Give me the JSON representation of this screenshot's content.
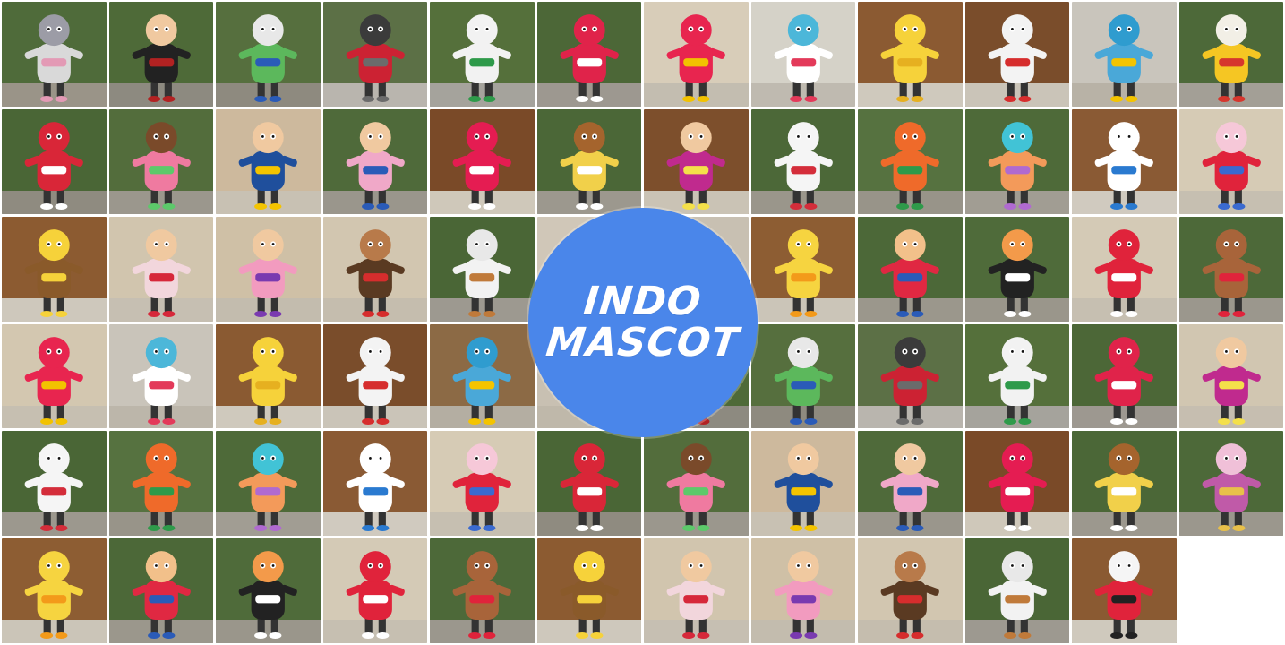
{
  "badge": {
    "line1": "INDO",
    "line2": "MASCOT",
    "color": "#4a86ea"
  },
  "tiles": [
    {
      "bg": "#4f6b3a",
      "ground": "#9a9488",
      "body": "#d9d9d9",
      "head": "#9c9ca6",
      "accent": "#e39ab5",
      "kind": "elephant-mascot"
    },
    {
      "bg": "#4e6a38",
      "ground": "#8d8a80",
      "body": "#222222",
      "head": "#f0c9a0",
      "accent": "#b22222",
      "kind": "gentleman-mascot"
    },
    {
      "bg": "#566f3e",
      "ground": "#8e8a7f",
      "body": "#5cb85c",
      "head": "#e8e8e8",
      "accent": "#2a5bb8",
      "kind": "creature-mascot"
    },
    {
      "bg": "#5c7046",
      "ground": "#b9b5ae",
      "body": "#cc2233",
      "head": "#3b3b3b",
      "accent": "#6b6b6b",
      "kind": "bird-mascot"
    },
    {
      "bg": "#55703b",
      "ground": "#a5a39c",
      "body": "#f2f2f2",
      "head": "#f2f2f2",
      "accent": "#2e9a4a",
      "kind": "bottle-mascot"
    },
    {
      "bg": "#4c6737",
      "ground": "#9d9890",
      "body": "#e0234a",
      "head": "#e0234a",
      "accent": "#ffffff",
      "kind": "monster-mascot"
    },
    {
      "bg": "#d8cdb9",
      "ground": "#c3bdb0",
      "body": "#e8254f",
      "head": "#e8254f",
      "accent": "#f2c200",
      "kind": "apple-mascot"
    },
    {
      "bg": "#d5d2c8",
      "ground": "#bfbab0",
      "body": "#ffffff",
      "head": "#4cb7d9",
      "accent": "#e33a5a",
      "kind": "fish-mascot"
    },
    {
      "bg": "#8b5a32",
      "ground": "#cfc9bd",
      "body": "#f6d23a",
      "head": "#f6d23a",
      "accent": "#e6b020",
      "kind": "hand-mascot"
    },
    {
      "bg": "#7a4d2b",
      "ground": "#cac4b8",
      "body": "#f3f3f3",
      "head": "#f3f3f3",
      "accent": "#d62d2d",
      "kind": "ninja-mascot"
    },
    {
      "bg": "#c9c5bc",
      "ground": "#b8b2a6",
      "body": "#4aa8d8",
      "head": "#2f9ccf",
      "accent": "#f4c400",
      "kind": "parrot-mascot"
    },
    {
      "bg": "#4d6939",
      "ground": "#a39f96",
      "body": "#f5c623",
      "head": "#f2efe6",
      "accent": "#d6362d",
      "kind": "chicken-mascot"
    },
    {
      "bg": "#4a6636",
      "ground": "#8f8b80",
      "body": "#d92638",
      "head": "#d92638",
      "accent": "#ffffff",
      "kind": "chef-mascot"
    },
    {
      "bg": "#536d3c",
      "ground": "#9b978d",
      "body": "#ef7aa0",
      "head": "#7a4a2a",
      "accent": "#5cc96a",
      "kind": "family-mascot"
    },
    {
      "bg": "#cdb99d",
      "ground": "#c8c1b3",
      "body": "#1f4f9c",
      "head": "#f0c9a0",
      "accent": "#f4c400",
      "kind": "prince-mascot"
    },
    {
      "bg": "#4f6a3a",
      "ground": "#9a968c",
      "body": "#f0a8c8",
      "head": "#f0c9a0",
      "accent": "#2a5bb8",
      "kind": "couple-mascot"
    },
    {
      "bg": "#7a4a28",
      "ground": "#cfc8ba",
      "body": "#e51c52",
      "head": "#e51c52",
      "accent": "#ffffff",
      "kind": "bag-mascot"
    },
    {
      "bg": "#4b6737",
      "ground": "#9c988e",
      "body": "#f1d04a",
      "head": "#a5642d",
      "accent": "#ffffff",
      "kind": "lion-mascot"
    },
    {
      "bg": "#7d4f2c",
      "ground": "#cac3b5",
      "body": "#c02a8e",
      "head": "#f0c9a0",
      "accent": "#f4e04a",
      "kind": "box-mascot"
    },
    {
      "bg": "#4c6838",
      "ground": "#9a968b",
      "body": "#f5f5f5",
      "head": "#f5f5f5",
      "accent": "#d42d3a",
      "kind": "pen-mascot"
    },
    {
      "bg": "#567240",
      "ground": "#989489",
      "body": "#ef6a2a",
      "head": "#ef6a2a",
      "accent": "#2e9a4a",
      "kind": "carrot-mascot"
    },
    {
      "bg": "#4e6a39",
      "ground": "#a19d93",
      "body": "#f39a5a",
      "head": "#41c3d6",
      "accent": "#b06ad0",
      "kind": "kid-mascot"
    },
    {
      "bg": "#8a5a34",
      "ground": "#d0cabf",
      "body": "#ffffff",
      "head": "#ffffff",
      "accent": "#2a7ad0",
      "kind": "cup-mascot"
    },
    {
      "bg": "#d6cbb5",
      "ground": "#c6bfb1",
      "body": "#e0233b",
      "head": "#f6c8d8",
      "accent": "#3a6ad0",
      "kind": "bunny-mascot"
    },
    {
      "bg": "#8c5b31",
      "ground": "#cec8bc",
      "body": "#8a5a2a",
      "head": "#f6d23a",
      "accent": "#f6d23a",
      "kind": "pencil-mascot"
    },
    {
      "bg": "#d1c5ae",
      "ground": "#c6bfb2",
      "body": "#f2d6dc",
      "head": "#f0c9a0",
      "accent": "#d6283a",
      "kind": "girl-mascot"
    },
    {
      "bg": "#cfc0a6",
      "ground": "#c3bcae",
      "body": "#f29bbf",
      "head": "#f0c9a0",
      "accent": "#7a3ab0",
      "kind": "boy-mascot"
    },
    {
      "bg": "#d2c6b0",
      "ground": "#c5bdae",
      "body": "#5a3a22",
      "head": "#b87a4a",
      "accent": "#d62d2d",
      "kind": "monkey-mascot"
    },
    {
      "bg": "#4a6636",
      "ground": "#9d9990",
      "body": "#f2f2f2",
      "head": "#e8e8e8",
      "accent": "#c07a3a",
      "kind": "goat-mascot"
    },
    {
      "bg": "#d0c7b8",
      "ground": "#c2bbad",
      "body": "#ffffff",
      "head": "#ffffff",
      "accent": "#ffffff",
      "kind": "hidden-tile"
    },
    {
      "bg": "#c8c0b2",
      "ground": "#bfb8aa",
      "body": "#ffffff",
      "head": "#ffffff",
      "accent": "#ffffff",
      "kind": "hidden-tile"
    },
    {
      "bg": "#8d5d33",
      "ground": "#cbc5b8",
      "body": "#f6d440",
      "head": "#f6d440",
      "accent": "#f39a1a",
      "kind": "duck-mascot"
    },
    {
      "bg": "#4c6838",
      "ground": "#9b978c",
      "body": "#e02842",
      "head": "#f2c08a",
      "accent": "#2a5bb8",
      "kind": "bear-mascot"
    },
    {
      "bg": "#4f6b3a",
      "ground": "#9a968b",
      "body": "#222222",
      "head": "#f39a4a",
      "accent": "#ffffff",
      "kind": "sushi-mascot"
    },
    {
      "bg": "#d4cab6",
      "ground": "#c6bfb1",
      "body": "#e0233b",
      "head": "#e0233b",
      "accent": "#ffffff",
      "kind": "letter-a-mascot"
    },
    {
      "bg": "#4d6939",
      "ground": "#9b978d",
      "body": "#a8643a",
      "head": "#a8643a",
      "accent": "#e0233b",
      "kind": "rooster-mascot"
    },
    {
      "bg": "#d3c7b0",
      "ground": "#c6bfb1",
      "body": "#e8254f",
      "head": "#e8254f",
      "accent": "#f2c200",
      "kind": "apple-mascot"
    },
    {
      "bg": "#c9c4ba",
      "ground": "#bcb6aa",
      "body": "#ffffff",
      "head": "#4cb7d9",
      "accent": "#e33a5a",
      "kind": "fish-mascot"
    },
    {
      "bg": "#8a5a32",
      "ground": "#cfc9bd",
      "body": "#f6d23a",
      "head": "#f6d23a",
      "accent": "#e6b020",
      "kind": "hand-mascot"
    },
    {
      "bg": "#7a4d2b",
      "ground": "#cac4b8",
      "body": "#f3f3f3",
      "head": "#f3f3f3",
      "accent": "#d62d2d",
      "kind": "ninja-mascot"
    },
    {
      "bg": "#8c6a45",
      "ground": "#b4aea2",
      "body": "#4aa8d8",
      "head": "#2f9ccf",
      "accent": "#f4c400",
      "kind": "parrot-mascot"
    },
    {
      "bg": "#c8c0b2",
      "ground": "#bfb8aa",
      "body": "#ffffff",
      "head": "#ffffff",
      "accent": "#ffffff",
      "kind": "hidden-tile"
    },
    {
      "bg": "#4e6a38",
      "ground": "#8d8a80",
      "body": "#222222",
      "head": "#f0c9a0",
      "accent": "#b22222",
      "kind": "gentleman-mascot"
    },
    {
      "bg": "#566f3e",
      "ground": "#8e8a7f",
      "body": "#5cb85c",
      "head": "#e8e8e8",
      "accent": "#2a5bb8",
      "kind": "creature-mascot"
    },
    {
      "bg": "#5c7046",
      "ground": "#b9b5ae",
      "body": "#cc2233",
      "head": "#3b3b3b",
      "accent": "#6b6b6b",
      "kind": "bird-mascot"
    },
    {
      "bg": "#55703b",
      "ground": "#a5a39c",
      "body": "#f2f2f2",
      "head": "#f2f2f2",
      "accent": "#2e9a4a",
      "kind": "bottle-mascot"
    },
    {
      "bg": "#4c6737",
      "ground": "#9d9890",
      "body": "#e0234a",
      "head": "#e0234a",
      "accent": "#ffffff",
      "kind": "monster-mascot"
    },
    {
      "bg": "#d1c6b1",
      "ground": "#c6beb0",
      "body": "#c02a8e",
      "head": "#f0c9a0",
      "accent": "#f4e04a",
      "kind": "box-mascot"
    },
    {
      "bg": "#4a6636",
      "ground": "#9c988e",
      "body": "#f5f5f5",
      "head": "#f5f5f5",
      "accent": "#d42d3a",
      "kind": "pen-mascot"
    },
    {
      "bg": "#567240",
      "ground": "#989489",
      "body": "#ef6a2a",
      "head": "#ef6a2a",
      "accent": "#2e9a4a",
      "kind": "carrot-mascot"
    },
    {
      "bg": "#4e6a39",
      "ground": "#a19d93",
      "body": "#f39a5a",
      "head": "#41c3d6",
      "accent": "#b06ad0",
      "kind": "kid-mascot"
    },
    {
      "bg": "#8a5a34",
      "ground": "#d0cabf",
      "body": "#ffffff",
      "head": "#ffffff",
      "accent": "#2a7ad0",
      "kind": "cup-mascot"
    },
    {
      "bg": "#d6cbb5",
      "ground": "#c6bfb1",
      "body": "#e0233b",
      "head": "#f6c8d8",
      "accent": "#3a6ad0",
      "kind": "bunny-mascot"
    },
    {
      "bg": "#4a6636",
      "ground": "#8f8b80",
      "body": "#d92638",
      "head": "#d92638",
      "accent": "#ffffff",
      "kind": "chef-mascot"
    },
    {
      "bg": "#536d3c",
      "ground": "#9b978d",
      "body": "#ef7aa0",
      "head": "#7a4a2a",
      "accent": "#5cc96a",
      "kind": "family-mascot"
    },
    {
      "bg": "#cdb99d",
      "ground": "#c8c1b3",
      "body": "#1f4f9c",
      "head": "#f0c9a0",
      "accent": "#f4c400",
      "kind": "prince-mascot"
    },
    {
      "bg": "#4f6a3a",
      "ground": "#9a968c",
      "body": "#f0a8c8",
      "head": "#f0c9a0",
      "accent": "#2a5bb8",
      "kind": "couple-mascot"
    },
    {
      "bg": "#7a4a28",
      "ground": "#cfc8ba",
      "body": "#e51c52",
      "head": "#e51c52",
      "accent": "#ffffff",
      "kind": "bag-mascot"
    },
    {
      "bg": "#4b6737",
      "ground": "#9c988e",
      "body": "#f1d04a",
      "head": "#a5642d",
      "accent": "#ffffff",
      "kind": "lion-mascot"
    },
    {
      "bg": "#4d6939",
      "ground": "#9b978d",
      "body": "#c05aa8",
      "head": "#f0c0d8",
      "accent": "#e8c04a",
      "kind": "cat-mascot"
    },
    {
      "bg": "#8d5d33",
      "ground": "#cbc5b8",
      "body": "#f6d440",
      "head": "#f6d440",
      "accent": "#f39a1a",
      "kind": "duck-mascot"
    },
    {
      "bg": "#4c6838",
      "ground": "#9b978c",
      "body": "#e02842",
      "head": "#f2c08a",
      "accent": "#2a5bb8",
      "kind": "bear-mascot"
    },
    {
      "bg": "#4f6b3a",
      "ground": "#9a968b",
      "body": "#222222",
      "head": "#f39a4a",
      "accent": "#ffffff",
      "kind": "sushi-mascot"
    },
    {
      "bg": "#d4cab6",
      "ground": "#c6bfb1",
      "body": "#e0233b",
      "head": "#e0233b",
      "accent": "#ffffff",
      "kind": "letter-a-mascot"
    },
    {
      "bg": "#4d6939",
      "ground": "#9b978d",
      "body": "#a8643a",
      "head": "#a8643a",
      "accent": "#e0233b",
      "kind": "rooster-mascot"
    },
    {
      "bg": "#8c5b31",
      "ground": "#cec8bc",
      "body": "#8a5a2a",
      "head": "#f6d23a",
      "accent": "#f6d23a",
      "kind": "pencil-mascot"
    },
    {
      "bg": "#d1c5ae",
      "ground": "#c6bfb2",
      "body": "#f2d6dc",
      "head": "#f0c9a0",
      "accent": "#d6283a",
      "kind": "girl-mascot"
    },
    {
      "bg": "#cfc0a6",
      "ground": "#c3bcae",
      "body": "#f29bbf",
      "head": "#f0c9a0",
      "accent": "#7a3ab0",
      "kind": "boy-mascot"
    },
    {
      "bg": "#d2c6b0",
      "ground": "#c5bdae",
      "body": "#5a3a22",
      "head": "#b87a4a",
      "accent": "#d62d2d",
      "kind": "monkey-mascot"
    },
    {
      "bg": "#4a6636",
      "ground": "#9d9990",
      "body": "#f2f2f2",
      "head": "#e8e8e8",
      "accent": "#c07a3a",
      "kind": "goat-mascot"
    },
    {
      "bg": "#8a5a32",
      "ground": "#cfc9bd",
      "body": "#e0233b",
      "head": "#f5f5f5",
      "accent": "#222222",
      "kind": "panda-mascot"
    }
  ]
}
